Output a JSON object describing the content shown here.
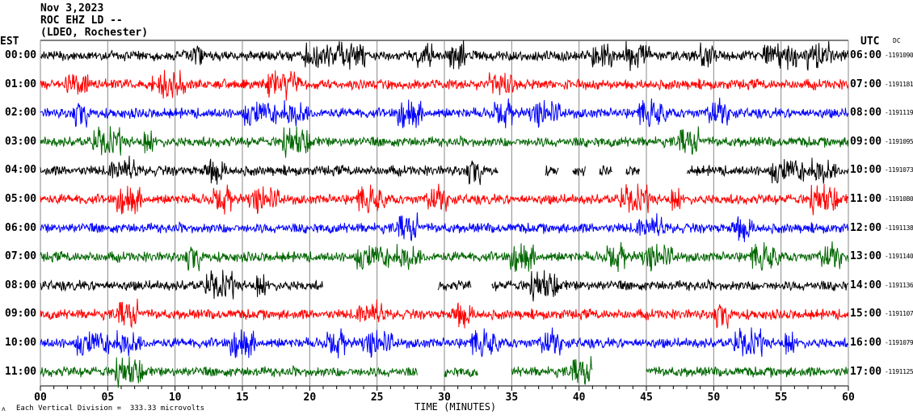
{
  "header": {
    "date": "Nov 3,2023",
    "station": "ROC EHZ LD --",
    "network": "(LDEO, Rochester)"
  },
  "left_axis_title": "EST",
  "right_axis_title": "UTC",
  "dc_label": "DC",
  "footer": {
    "scale_text": "Each Vertical Division =  333.33 microvolts",
    "marker": "ʌ"
  },
  "colors": {
    "black": "#000000",
    "red": "#ff0000",
    "blue": "#0000ff",
    "green": "#006600",
    "grid": "#888888"
  },
  "chart_data": {
    "type": "line",
    "title": "Nov 3,2023 ROC EHZ LD -- (LDEO, Rochester)",
    "xlabel": "TIME (MINUTES)",
    "xlim": [
      0,
      60
    ],
    "xticks": [
      "00",
      "05",
      "10",
      "15",
      "20",
      "25",
      "30",
      "35",
      "40",
      "45",
      "50",
      "55",
      "60"
    ],
    "grid": true,
    "rows": [
      {
        "est": "00:00",
        "utc": "06:00",
        "dc": "-1191090",
        "color": "#000000",
        "gaps": []
      },
      {
        "est": "01:00",
        "utc": "07:00",
        "dc": "-1191181",
        "color": "#ff0000",
        "gaps": []
      },
      {
        "est": "02:00",
        "utc": "08:00",
        "dc": "-1191119",
        "color": "#0000ff",
        "gaps": []
      },
      {
        "est": "03:00",
        "utc": "09:00",
        "dc": "-1191095",
        "color": "#006600",
        "gaps": []
      },
      {
        "est": "04:00",
        "utc": "10:00",
        "dc": "-1191073",
        "color": "#000000",
        "gaps": [
          [
            34,
            37.5
          ],
          [
            38.5,
            39.5
          ],
          [
            40.5,
            41.5
          ],
          [
            42.5,
            43.5
          ],
          [
            44.5,
            48
          ]
        ]
      },
      {
        "est": "05:00",
        "utc": "11:00",
        "dc": "-1191080",
        "color": "#ff0000",
        "gaps": []
      },
      {
        "est": "06:00",
        "utc": "12:00",
        "dc": "-1191138",
        "color": "#0000ff",
        "gaps": []
      },
      {
        "est": "07:00",
        "utc": "13:00",
        "dc": "-1191140",
        "color": "#006600",
        "gaps": []
      },
      {
        "est": "08:00",
        "utc": "14:00",
        "dc": "-1191136",
        "color": "#000000",
        "gaps": [
          [
            21,
            29.5
          ],
          [
            32,
            33.5
          ]
        ]
      },
      {
        "est": "09:00",
        "utc": "15:00",
        "dc": "-1191107",
        "color": "#ff0000",
        "gaps": []
      },
      {
        "est": "10:00",
        "utc": "16:00",
        "dc": "-1191079",
        "color": "#0000ff",
        "gaps": []
      },
      {
        "est": "11:00",
        "utc": "17:00",
        "dc": "-1191125",
        "color": "#006600",
        "gaps": [
          [
            28,
            30
          ],
          [
            32.5,
            35
          ],
          [
            41,
            45
          ]
        ]
      }
    ]
  }
}
